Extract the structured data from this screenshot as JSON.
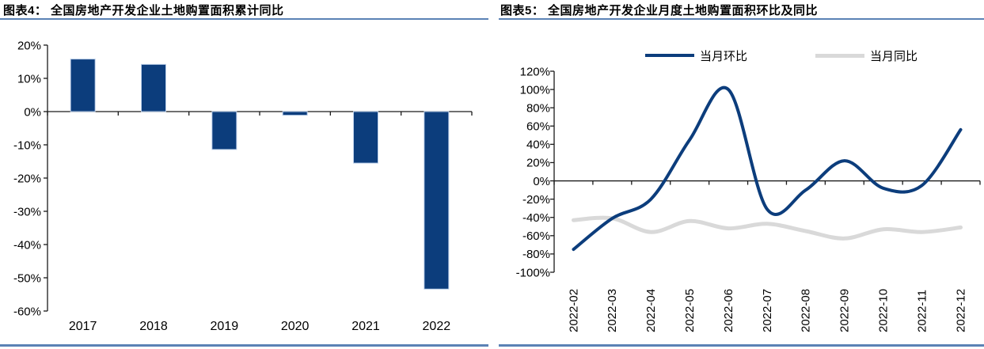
{
  "panels": {
    "left": {
      "title": "图表4：  全国房地产开发企业土地购置面积累计同比"
    },
    "right": {
      "title": "图表5：  全国房地产开发企业月度土地购置面积环比及同比"
    }
  },
  "colors": {
    "navy": "#0c3d7c",
    "series_gray": "#d9d9d9",
    "rule_blue": "#5b82b5",
    "axis": "#1a1a1a",
    "bar_edge": "#b9cde8",
    "text": "#000000"
  },
  "chart_data": [
    {
      "type": "bar",
      "title": "全国房地产开发企业土地购置面积累计同比",
      "categories": [
        "2017",
        "2018",
        "2019",
        "2020",
        "2021",
        "2022"
      ],
      "values": [
        15.8,
        14.2,
        -11.4,
        -1.1,
        -15.5,
        -53.4
      ],
      "unit": "%",
      "xlabel": "",
      "ylabel": "",
      "ylim": [
        -60,
        20
      ],
      "ytick_step": 10,
      "ytick_labels": [
        "20%",
        "10%",
        "0%",
        "-10%",
        "-20%",
        "-30%",
        "-40%",
        "-50%",
        "-60%"
      ],
      "grid": false,
      "bar_color": "#0c3d7c",
      "legend_position": "none"
    },
    {
      "type": "line",
      "title": "全国房地产开发企业月度土地购置面积环比及同比",
      "x": [
        "2022-02",
        "2022-03",
        "2022-04",
        "2022-05",
        "2022-06",
        "2022-07",
        "2022-08",
        "2022-09",
        "2022-10",
        "2022-11",
        "2022-12"
      ],
      "series": [
        {
          "name": "当月环比",
          "color": "#0c3d7c",
          "values": [
            -75,
            -41,
            -20,
            45,
            100,
            -31,
            -10,
            22,
            -8,
            -5,
            56
          ]
        },
        {
          "name": "当月同比",
          "color": "#d9d9d9",
          "values": [
            -43,
            -41,
            -56,
            -44,
            -52,
            -47,
            -55,
            -63,
            -53,
            -56,
            -51
          ]
        }
      ],
      "unit": "%",
      "xlabel": "",
      "ylabel": "",
      "ylim": [
        -100,
        120
      ],
      "ytick_step": 20,
      "ytick_labels": [
        "120%",
        "100%",
        "80%",
        "60%",
        "40%",
        "20%",
        "0%",
        "-20%",
        "-40%",
        "-60%",
        "-80%",
        "-100%"
      ],
      "grid": false,
      "smooth": true,
      "legend_position": "top"
    }
  ]
}
